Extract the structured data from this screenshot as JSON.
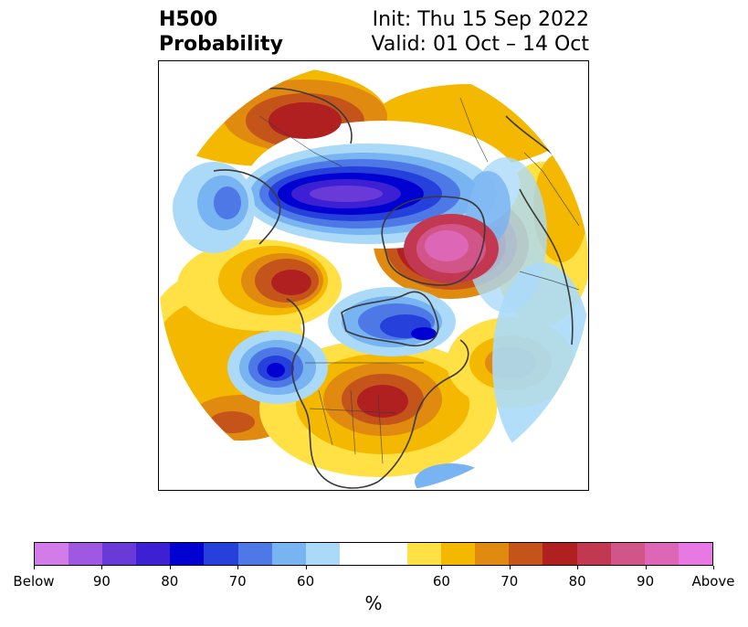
{
  "header": {
    "title_line1": "H500",
    "title_line2": "Probability",
    "init_text": "Init: Thu 15 Sep 2022",
    "valid_text": "Valid: 01 Oct – 14 Oct"
  },
  "map": {
    "projection": "north-polar-stereographic",
    "background_color": "#ffffff",
    "coastline_color": "#3a3a3a"
  },
  "colorbar": {
    "label": "%",
    "colors": [
      "#d27cea",
      "#9e58e2",
      "#6a3ad8",
      "#3d1fd4",
      "#0000d0",
      "#2641db",
      "#4e78e6",
      "#78b3f2",
      "#abdaf9",
      "#ffffff",
      "#ffffff",
      "#ffe045",
      "#f4b800",
      "#e08a10",
      "#c4541a",
      "#b02020",
      "#c23850",
      "#d2558a",
      "#dd66b6",
      "#e879e2"
    ],
    "tick_labels": [
      "Below",
      "90",
      "80",
      "70",
      "60",
      "60",
      "70",
      "80",
      "90",
      "Above"
    ]
  },
  "legend_colors": {
    "below_extreme": "#d27cea",
    "above_extreme": "#e879e2"
  }
}
